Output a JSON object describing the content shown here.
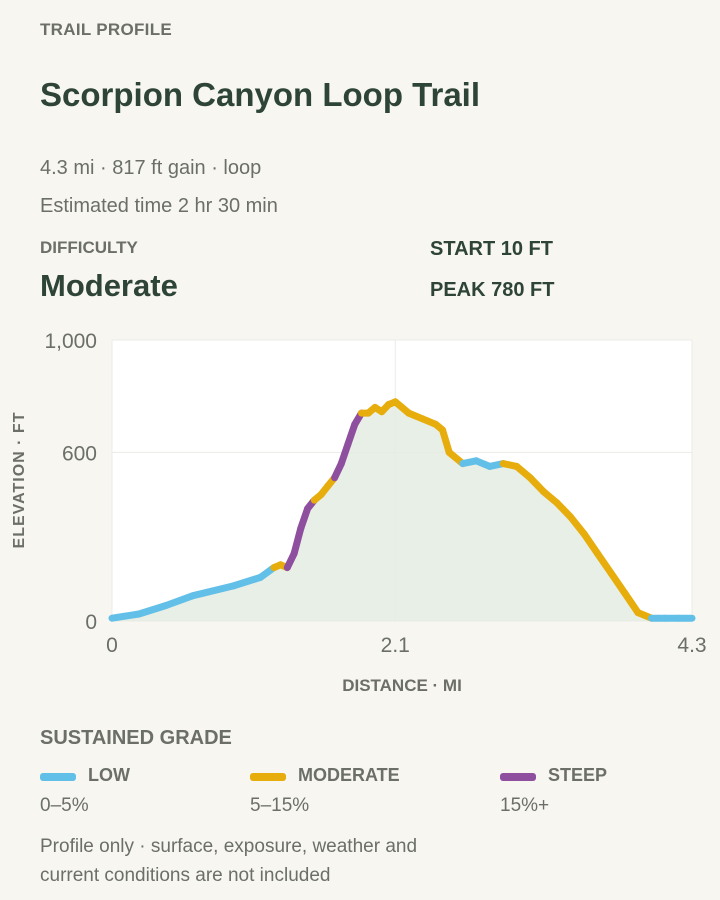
{
  "header": {
    "eyebrow": "TRAIL PROFILE",
    "title": "Scorpion Canyon Loop Trail",
    "summary": "4.3 mi · 817 ft gain · loop",
    "estimate": "Estimated time 2 hr 30 min"
  },
  "difficulty": {
    "label": "DIFFICULTY",
    "value": "Moderate"
  },
  "stats": {
    "start": "START 10 FT",
    "peak": "PEAK 780 FT"
  },
  "chart_data": {
    "type": "line",
    "ylabel": "ELEVATION · FT",
    "xlabel": "DISTANCE · MI",
    "xlim": [
      0,
      4.3
    ],
    "ylim": [
      0,
      1000
    ],
    "x_ticks": [
      0,
      2.1,
      4.3
    ],
    "x_tick_labels": [
      "0",
      "2.1",
      "4.3"
    ],
    "y_ticks": [
      0,
      600,
      1000
    ],
    "y_tick_labels": [
      "0",
      "600",
      "1,000"
    ],
    "grid": true,
    "area_fill": true,
    "colors": {
      "low": "#62bfe8",
      "moderate": "#e6ad0c",
      "steep": "#8e4f9e",
      "area": "#e4ece2"
    },
    "series": [
      {
        "x": [
          0,
          0.2,
          0.4,
          0.6,
          0.9,
          1.1,
          1.2,
          1.25,
          1.3,
          1.35,
          1.4,
          1.45,
          1.5,
          1.55,
          1.6,
          1.65,
          1.7,
          1.75,
          1.8,
          1.85,
          1.9,
          1.95,
          2.0,
          2.05,
          2.1,
          2.15,
          2.2,
          2.3,
          2.4,
          2.45,
          2.5,
          2.6,
          2.7,
          2.8,
          2.9,
          3.0,
          3.1,
          3.2,
          3.3,
          3.4,
          3.5,
          3.6,
          3.7,
          3.8,
          3.9,
          4.0,
          4.05,
          4.1,
          4.2,
          4.3
        ],
        "y": [
          10,
          25,
          55,
          90,
          125,
          155,
          190,
          200,
          190,
          240,
          330,
          400,
          430,
          450,
          480,
          510,
          560,
          630,
          700,
          740,
          740,
          760,
          745,
          770,
          780,
          760,
          740,
          720,
          700,
          680,
          600,
          560,
          570,
          550,
          560,
          550,
          510,
          460,
          420,
          370,
          310,
          240,
          170,
          100,
          30,
          10,
          10,
          10,
          10,
          10
        ],
        "grade": [
          "low",
          "low",
          "low",
          "low",
          "low",
          "low",
          "moderate",
          "moderate",
          "steep",
          "steep",
          "steep",
          "steep",
          "moderate",
          "moderate",
          "moderate",
          "steep",
          "steep",
          "steep",
          "steep",
          "moderate",
          "moderate",
          "moderate",
          "moderate",
          "moderate",
          "moderate",
          "moderate",
          "moderate",
          "moderate",
          "moderate",
          "moderate",
          "moderate",
          "low",
          "low",
          "low",
          "moderate",
          "moderate",
          "moderate",
          "moderate",
          "moderate",
          "moderate",
          "moderate",
          "moderate",
          "moderate",
          "moderate",
          "moderate",
          "low",
          "low",
          "low",
          "low"
        ]
      }
    ]
  },
  "legend": {
    "title": "SUSTAINED GRADE",
    "items": [
      {
        "name": "LOW",
        "range": "0–5%",
        "color": "#62bfe8"
      },
      {
        "name": "MODERATE",
        "range": "5–15%",
        "color": "#e6ad0c"
      },
      {
        "name": "STEEP",
        "range": "15%+",
        "color": "#8e4f9e"
      }
    ]
  },
  "footnote": "Profile only · surface, exposure, weather and current conditions are not included"
}
